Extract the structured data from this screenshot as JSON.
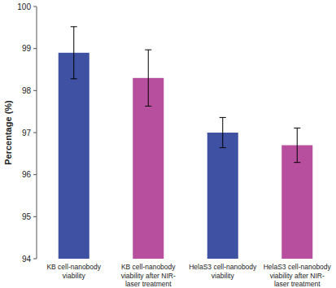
{
  "chart_data": {
    "type": "bar",
    "y_label": "Percentage (%)",
    "categories": [
      "KB cell-nanobody viability",
      "KB cell-nanobody viability after NIR-laser treatment",
      "HelaS3 cell-nanobody viability",
      "HelaS3 cell-nanobody viability after NIR-laser treatment"
    ],
    "values": [
      98.9,
      98.3,
      97.0,
      96.7
    ],
    "errors": [
      0.62,
      0.67,
      0.36,
      0.41
    ],
    "colors": [
      "#3f51a3",
      "#b84f9e",
      "#3f51a3",
      "#b84f9e"
    ],
    "ylim": [
      94,
      100
    ],
    "yticks": [
      94,
      95,
      96,
      97,
      98,
      99,
      100
    ],
    "grid": false
  }
}
